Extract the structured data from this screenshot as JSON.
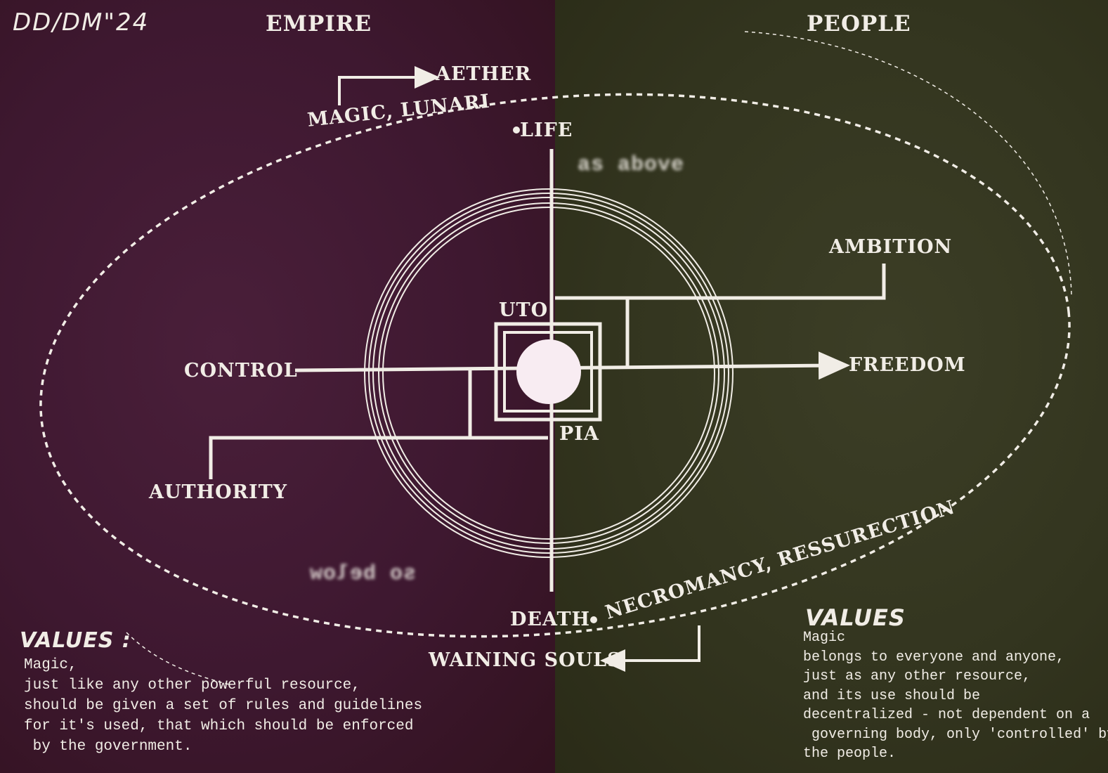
{
  "signature": "DD/DM\"24",
  "headers": {
    "left": "EMPIRE",
    "right": "PEOPLE"
  },
  "labels": {
    "aether": "AETHER",
    "magic_lunari": "MAGIC, LUNARI",
    "life": "LIFE",
    "as_above": "as above",
    "ambition": "AMBITION",
    "uto": "UTO",
    "control": "CONTROL",
    "freedom": "FREEDOM",
    "pia": "PIA",
    "authority": "AUTHORITY",
    "so_below": "so below",
    "death": "DEATH",
    "necromancy": "NECROMANCY, RESSURECTION",
    "waining_souls": "WAINING SOULS"
  },
  "values_left": {
    "title": "VALUES :",
    "lines": [
      "Magic,",
      "just like any other powerful resource,",
      "should be given a set of rules and guidelines",
      "for it's used, that which should be enforced",
      " by the government."
    ]
  },
  "values_right": {
    "title": "VALUES",
    "lines": [
      "Magic",
      "belongs to everyone and anyone,",
      "just as any other resource,",
      "and its use should be",
      "decentralized - not dependent on a",
      " governing body, only 'controlled' by",
      "the people."
    ]
  },
  "colors": {
    "empire_bg": "#3e1830",
    "people_bg": "#33351f",
    "line": "#f1ede6"
  }
}
